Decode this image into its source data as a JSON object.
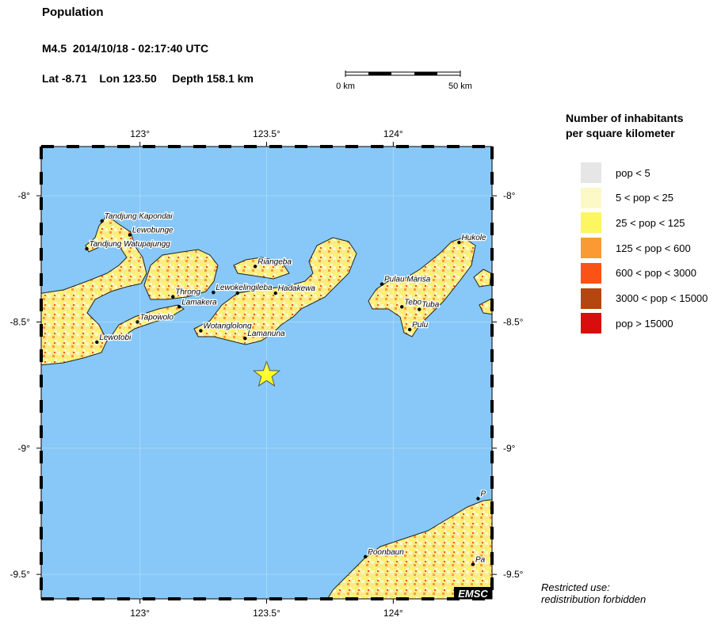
{
  "header": {
    "title": "Population",
    "event": "M4.5  2014/10/18 - 02:17:40 UTC",
    "lat_label": "Lat -8.71",
    "lon_label": "Lon 123.50",
    "depth_label": "Depth 158.1 km"
  },
  "scale_bar": {
    "start_label": "0 km",
    "end_label": "50 km"
  },
  "map": {
    "extent": {
      "lon_min": 122.61,
      "lon_max": 124.39,
      "lat_min": -9.597,
      "lat_max": -7.805
    },
    "lon_ticks": [
      {
        "value": 123,
        "label": "123°"
      },
      {
        "value": 123.5,
        "label": "123.5°"
      },
      {
        "value": 124,
        "label": "124°"
      }
    ],
    "lat_ticks": [
      {
        "value": -8,
        "label": "-8°"
      },
      {
        "value": -8.5,
        "label": "-8.5°"
      },
      {
        "value": -9,
        "label": "-9°"
      },
      {
        "value": -9.5,
        "label": "-9.5°"
      }
    ],
    "sea_color": "#87c8f8",
    "epicenter": {
      "lon": 123.5,
      "lat": -8.71,
      "color": "#ffff22"
    },
    "places": [
      {
        "name": "Tandjung Kapondai",
        "lon": 122.85,
        "lat": -8.1
      },
      {
        "name": "Lewobunge",
        "lon": 122.96,
        "lat": -8.155
      },
      {
        "name": "Tandjung Watupajungg",
        "lon": 122.79,
        "lat": -8.21
      },
      {
        "name": "Throng",
        "lon": 123.13,
        "lat": -8.4
      },
      {
        "name": "Lewokelingileba",
        "lon": 123.29,
        "lat": -8.383
      },
      {
        "name": "",
        "lon": 123.385,
        "lat": -8.386
      },
      {
        "name": "Hadakewa",
        "lon": 123.535,
        "lat": -8.386
      },
      {
        "name": "Lamakera",
        "lon": 123.155,
        "lat": -8.44
      },
      {
        "name": "Tapowolo",
        "lon": 122.99,
        "lat": -8.5
      },
      {
        "name": "Lewotobi",
        "lon": 122.83,
        "lat": -8.58
      },
      {
        "name": "Riangeba",
        "lon": 123.455,
        "lat": -8.28
      },
      {
        "name": "Wotanglolong",
        "lon": 123.24,
        "lat": -8.535
      },
      {
        "name": "Lamanuna",
        "lon": 123.415,
        "lat": -8.565
      },
      {
        "name": "Pulau Marisa",
        "lon": 123.955,
        "lat": -8.35
      },
      {
        "name": "Tebo",
        "lon": 124.034,
        "lat": -8.44
      },
      {
        "name": "Tuba",
        "lon": 124.103,
        "lat": -8.45
      },
      {
        "name": "Pulu",
        "lon": 124.065,
        "lat": -8.53
      },
      {
        "name": "Hukole",
        "lon": 124.26,
        "lat": -8.185
      },
      {
        "name": "P",
        "lon": 124.335,
        "lat": -9.2
      },
      {
        "name": "Pa",
        "lon": 124.315,
        "lat": -9.46
      },
      {
        "name": "Poonbaun",
        "lon": 123.89,
        "lat": -9.43
      }
    ],
    "watermark": "EMSC"
  },
  "legend": {
    "title_line1": "Number of inhabitants",
    "title_line2": "per square kilometer",
    "items": [
      {
        "label": "pop < 5",
        "color": "#e6e6e6"
      },
      {
        "label": "5 < pop < 25",
        "color": "#fcf8c8"
      },
      {
        "label": "25 < pop < 125",
        "color": "#fcf660"
      },
      {
        "label": "125 < pop < 600",
        "color": "#fb9a33"
      },
      {
        "label": "600 < pop < 3000",
        "color": "#fb5216"
      },
      {
        "label": "3000 < pop < 15000",
        "color": "#b5460f"
      },
      {
        "label": "pop > 15000",
        "color": "#d90d0d"
      }
    ]
  },
  "note": {
    "line1": "Restricted use:",
    "line2": "redistribution forbidden"
  }
}
